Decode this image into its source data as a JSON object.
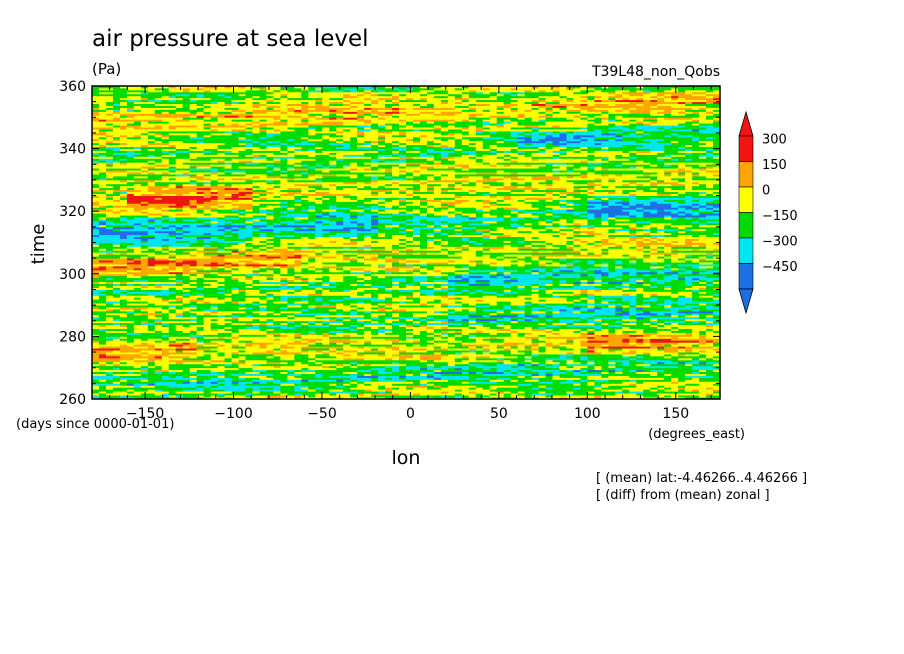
{
  "chart_data": {
    "type": "heatmap",
    "title": "air pressure at sea level",
    "units": "(Pa)",
    "run_label": "T39L48_non_Qobs",
    "xlabel": "lon",
    "xunits": "(degrees_east)",
    "ylabel": "time",
    "yunits": "(days since 0000-01-01)",
    "xlim": [
      -180,
      175
    ],
    "ylim": [
      260,
      360
    ],
    "xticks": [
      -150,
      -100,
      -50,
      0,
      50,
      100,
      150
    ],
    "yticks": [
      260,
      280,
      300,
      320,
      340,
      360
    ],
    "notes": [
      "[ (mean) lat:-4.46266..4.46266 ]",
      "[ (diff) from (mean) zonal ]"
    ],
    "colorbar": {
      "levels": [
        -450,
        -300,
        -150,
        0,
        150,
        300
      ],
      "labels": [
        "300",
        "150",
        "0",
        "-150",
        "-300",
        "-450"
      ],
      "colors": [
        "#1e6fe6",
        "#00e6f0",
        "#00dc00",
        "#ffff00",
        "#ffa500",
        "#f01414"
      ],
      "extend": "both"
    },
    "anomaly_bands": [
      {
        "t_center": 268,
        "lon_from": -180,
        "lon_to": 175,
        "value": -150
      },
      {
        "t_center": 275,
        "lon_from": 100,
        "lon_to": 175,
        "value": 200
      },
      {
        "t_center": 279,
        "lon_from": -180,
        "lon_to": -120,
        "value": 200
      },
      {
        "t_center": 285,
        "lon_from": 20,
        "lon_to": 175,
        "value": -200
      },
      {
        "t_center": 297,
        "lon_from": 20,
        "lon_to": 175,
        "value": -220
      },
      {
        "t_center": 306,
        "lon_from": -180,
        "lon_to": -60,
        "value": 250
      },
      {
        "t_center": 316,
        "lon_from": -180,
        "lon_to": -20,
        "value": -250
      },
      {
        "t_center": 318,
        "lon_from": 100,
        "lon_to": 175,
        "value": -250
      },
      {
        "t_center": 327,
        "lon_from": -160,
        "lon_to": -90,
        "value": 300
      },
      {
        "t_center": 341,
        "lon_from": 60,
        "lon_to": 175,
        "value": -200
      },
      {
        "t_center": 352,
        "lon_from": -180,
        "lon_to": 175,
        "value": 150
      }
    ]
  }
}
